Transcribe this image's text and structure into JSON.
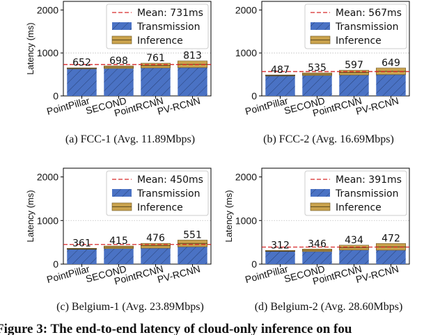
{
  "colors": {
    "transmission": "#4a72c4",
    "inference": "#c9a24d",
    "mean_line": "#d62728",
    "axis": "#000000",
    "grid": "#bbbbbb"
  },
  "chart_data": [
    {
      "type": "bar",
      "stacked": true,
      "caption": "(a)  FCC-1 (Avg. 11.89Mbps)",
      "ylabel": "Latency (ms)",
      "ylim": [
        0,
        2200
      ],
      "yticks": [
        "0",
        "1000",
        "2000"
      ],
      "ytick_values": [
        0,
        1000,
        2000
      ],
      "categories": [
        "PointPillar",
        "SECOND",
        "PointRCNN",
        "PV-RCNN"
      ],
      "series": [
        {
          "name": "Transmission",
          "values": [
            630,
            640,
            650,
            660
          ]
        },
        {
          "name": "Inference",
          "values": [
            22,
            58,
            111,
            153
          ]
        }
      ],
      "totals": [
        652,
        698,
        761,
        813
      ],
      "total_labels": [
        "652",
        "698",
        "761",
        "813"
      ],
      "mean": 731,
      "legend": {
        "mean_label": "Mean: 731ms",
        "transmission_label": "Transmission",
        "inference_label": "Inference",
        "position": "top-right"
      }
    },
    {
      "type": "bar",
      "stacked": true,
      "caption": "(b)  FCC-2 (Avg. 16.69Mbps)",
      "ylabel": "",
      "ylim": [
        0,
        2200
      ],
      "yticks": [
        "0",
        "1000",
        "2000"
      ],
      "ytick_values": [
        0,
        1000,
        2000
      ],
      "categories": [
        "PointPillar",
        "SECOND",
        "PointRCNN",
        "PV-RCNN"
      ],
      "series": [
        {
          "name": "Transmission",
          "values": [
            465,
            477,
            486,
            496
          ]
        },
        {
          "name": "Inference",
          "values": [
            22,
            58,
            111,
            153
          ]
        }
      ],
      "totals": [
        487,
        535,
        597,
        649
      ],
      "total_labels": [
        "487",
        "535",
        "597",
        "649"
      ],
      "mean": 567,
      "legend": {
        "mean_label": "Mean: 567ms",
        "transmission_label": "Transmission",
        "inference_label": "Inference",
        "position": "top-right"
      }
    },
    {
      "type": "bar",
      "stacked": true,
      "caption": "(c)  Belgium-1 (Avg. 23.89Mbps)",
      "ylabel": "Latency (ms)",
      "ylim": [
        0,
        2200
      ],
      "yticks": [
        "0",
        "1000",
        "2000"
      ],
      "ytick_values": [
        0,
        1000,
        2000
      ],
      "categories": [
        "PointPillar",
        "SECOND",
        "PointRCNN",
        "PV-RCNN"
      ],
      "series": [
        {
          "name": "Transmission",
          "values": [
            339,
            357,
            365,
            398
          ]
        },
        {
          "name": "Inference",
          "values": [
            22,
            58,
            111,
            153
          ]
        }
      ],
      "totals": [
        361,
        415,
        476,
        551
      ],
      "total_labels": [
        "361",
        "415",
        "476",
        "551"
      ],
      "mean": 450,
      "legend": {
        "mean_label": "Mean: 450ms",
        "transmission_label": "Transmission",
        "inference_label": "Inference",
        "position": "top-right"
      }
    },
    {
      "type": "bar",
      "stacked": true,
      "caption": "(d)  Belgium-2 (Avg. 28.60Mbps)",
      "ylabel": "Latency (ms)",
      "ylim": [
        0,
        2200
      ],
      "yticks": [
        "0",
        "1000",
        "2000"
      ],
      "ytick_values": [
        0,
        1000,
        2000
      ],
      "categories": [
        "PointPillar",
        "SECOND",
        "PointRCNN",
        "PV-RCNN"
      ],
      "series": [
        {
          "name": "Transmission",
          "values": [
            290,
            288,
            323,
            319
          ]
        },
        {
          "name": "Inference",
          "values": [
            22,
            58,
            111,
            153
          ]
        }
      ],
      "totals": [
        312,
        346,
        434,
        472
      ],
      "total_labels": [
        "312",
        "346",
        "434",
        "472"
      ],
      "mean": 391,
      "legend": {
        "mean_label": "Mean: 391ms",
        "transmission_label": "Transmission",
        "inference_label": "Inference",
        "position": "top-right"
      }
    }
  ],
  "figure_caption": "Figure 3: The end-to-end latency of cloud-only inference on fou"
}
